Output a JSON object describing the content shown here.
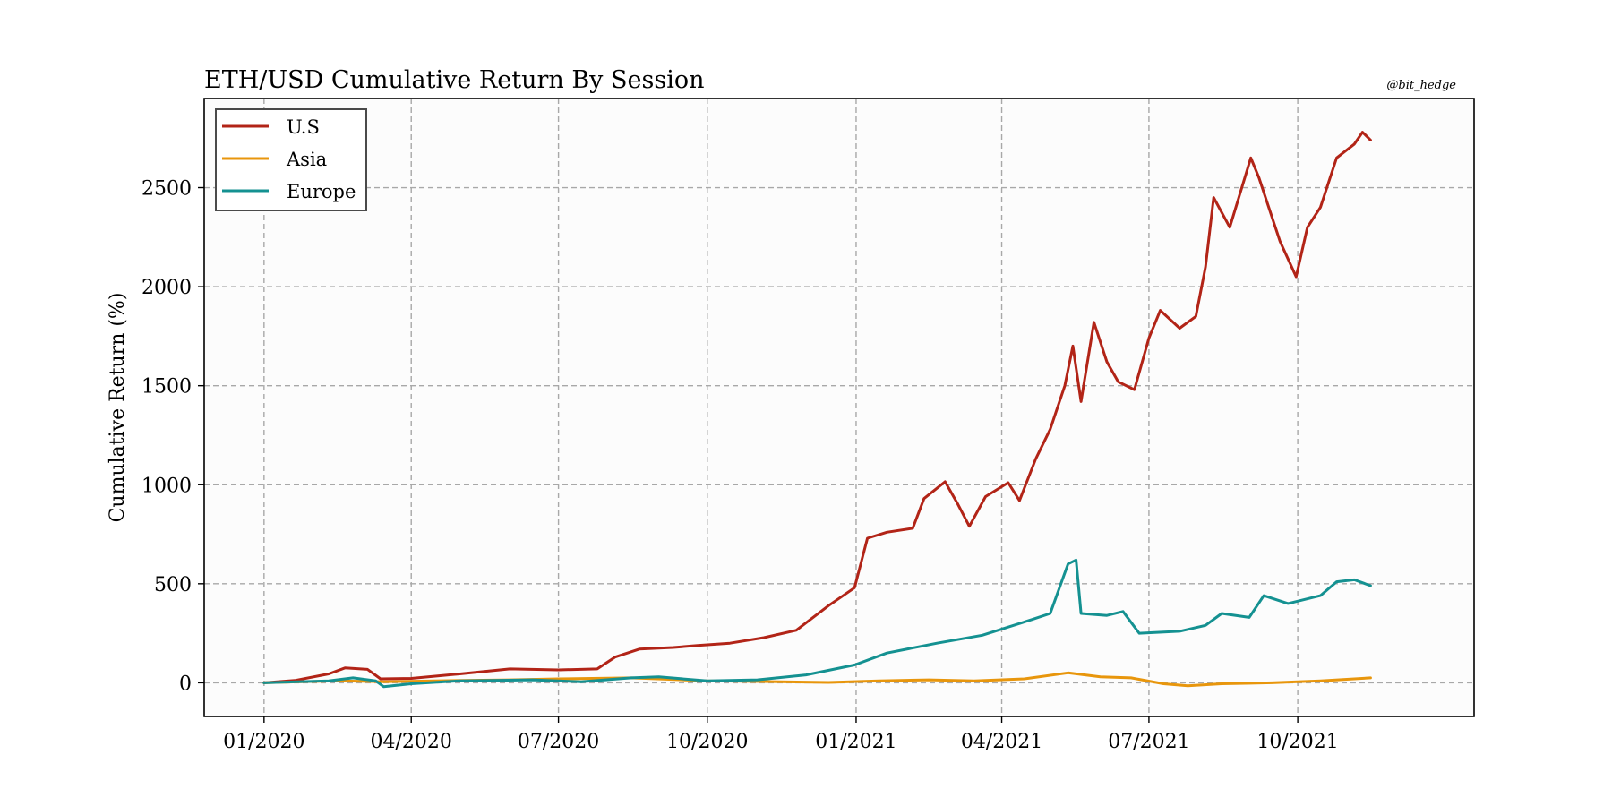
{
  "chart_data": {
    "type": "line",
    "title": "ETH/USD Cumulative Return By Session",
    "watermark": "@bit_hedge",
    "xlabel": "",
    "ylabel": "Cumulative Return (%)",
    "x_ticks": [
      "01/2020",
      "04/2020",
      "07/2020",
      "10/2020",
      "01/2021",
      "04/2021",
      "07/2021",
      "10/2021"
    ],
    "x_tick_dates": [
      "2020-01-01",
      "2020-04-01",
      "2020-07-01",
      "2020-10-01",
      "2021-01-01",
      "2021-04-01",
      "2021-07-01",
      "2021-10-01"
    ],
    "y_ticks": [
      0,
      500,
      1000,
      1500,
      2000,
      2500
    ],
    "xlim": [
      "2019-11-25",
      "2022-01-18"
    ],
    "ylim": [
      -170,
      2950
    ],
    "grid": true,
    "legend_position": "top-left",
    "colors": {
      "U.S": "#b22417",
      "Asia": "#e8960c",
      "Europe": "#149191"
    },
    "series": [
      {
        "name": "U.S",
        "color": "#b22417",
        "points": [
          [
            "2020-01-01",
            0
          ],
          [
            "2020-01-20",
            12
          ],
          [
            "2020-02-10",
            45
          ],
          [
            "2020-02-20",
            75
          ],
          [
            "2020-03-05",
            68
          ],
          [
            "2020-03-13",
            20
          ],
          [
            "2020-04-01",
            22
          ],
          [
            "2020-05-01",
            45
          ],
          [
            "2020-06-01",
            70
          ],
          [
            "2020-07-01",
            65
          ],
          [
            "2020-07-25",
            70
          ],
          [
            "2020-08-05",
            130
          ],
          [
            "2020-08-20",
            170
          ],
          [
            "2020-09-10",
            178
          ],
          [
            "2020-09-25",
            188
          ],
          [
            "2020-10-15",
            200
          ],
          [
            "2020-11-05",
            228
          ],
          [
            "2020-11-25",
            265
          ],
          [
            "2020-12-15",
            390
          ],
          [
            "2020-12-31",
            480
          ],
          [
            "2021-01-08",
            730
          ],
          [
            "2021-01-20",
            760
          ],
          [
            "2021-02-05",
            780
          ],
          [
            "2021-02-12",
            930
          ],
          [
            "2021-02-25",
            1015
          ],
          [
            "2021-03-05",
            900
          ],
          [
            "2021-03-12",
            790
          ],
          [
            "2021-03-22",
            940
          ],
          [
            "2021-04-05",
            1010
          ],
          [
            "2021-04-12",
            920
          ],
          [
            "2021-04-22",
            1130
          ],
          [
            "2021-05-01",
            1280
          ],
          [
            "2021-05-10",
            1500
          ],
          [
            "2021-05-15",
            1700
          ],
          [
            "2021-05-20",
            1420
          ],
          [
            "2021-05-28",
            1820
          ],
          [
            "2021-06-05",
            1620
          ],
          [
            "2021-06-12",
            1520
          ],
          [
            "2021-06-22",
            1480
          ],
          [
            "2021-07-01",
            1740
          ],
          [
            "2021-07-08",
            1880
          ],
          [
            "2021-07-20",
            1790
          ],
          [
            "2021-07-30",
            1850
          ],
          [
            "2021-08-05",
            2100
          ],
          [
            "2021-08-10",
            2450
          ],
          [
            "2021-08-20",
            2300
          ],
          [
            "2021-09-02",
            2650
          ],
          [
            "2021-09-07",
            2550
          ],
          [
            "2021-09-20",
            2230
          ],
          [
            "2021-09-30",
            2050
          ],
          [
            "2021-10-07",
            2300
          ],
          [
            "2021-10-15",
            2400
          ],
          [
            "2021-10-25",
            2650
          ],
          [
            "2021-11-05",
            2720
          ],
          [
            "2021-11-10",
            2780
          ],
          [
            "2021-11-15",
            2740
          ]
        ]
      },
      {
        "name": "Asia",
        "color": "#e8960c",
        "points": [
          [
            "2020-01-01",
            0
          ],
          [
            "2020-02-15",
            10
          ],
          [
            "2020-03-15",
            5
          ],
          [
            "2020-04-15",
            10
          ],
          [
            "2020-06-01",
            15
          ],
          [
            "2020-07-01",
            20
          ],
          [
            "2020-08-15",
            25
          ],
          [
            "2020-10-01",
            10
          ],
          [
            "2020-11-15",
            5
          ],
          [
            "2020-12-15",
            2
          ],
          [
            "2021-01-15",
            10
          ],
          [
            "2021-02-15",
            15
          ],
          [
            "2021-03-15",
            10
          ],
          [
            "2021-04-15",
            20
          ],
          [
            "2021-05-12",
            50
          ],
          [
            "2021-06-01",
            30
          ],
          [
            "2021-06-20",
            25
          ],
          [
            "2021-07-10",
            -5
          ],
          [
            "2021-07-25",
            -15
          ],
          [
            "2021-08-15",
            -5
          ],
          [
            "2021-09-15",
            0
          ],
          [
            "2021-10-15",
            10
          ],
          [
            "2021-11-15",
            25
          ]
        ]
      },
      {
        "name": "Europe",
        "color": "#149191",
        "points": [
          [
            "2020-01-01",
            0
          ],
          [
            "2020-02-10",
            10
          ],
          [
            "2020-02-25",
            25
          ],
          [
            "2020-03-10",
            10
          ],
          [
            "2020-03-15",
            -20
          ],
          [
            "2020-04-01",
            -5
          ],
          [
            "2020-05-01",
            10
          ],
          [
            "2020-06-15",
            15
          ],
          [
            "2020-07-15",
            5
          ],
          [
            "2020-08-15",
            25
          ],
          [
            "2020-09-01",
            30
          ],
          [
            "2020-10-01",
            10
          ],
          [
            "2020-11-01",
            15
          ],
          [
            "2020-12-01",
            40
          ],
          [
            "2020-12-31",
            90
          ],
          [
            "2021-01-20",
            150
          ],
          [
            "2021-02-20",
            200
          ],
          [
            "2021-03-20",
            240
          ],
          [
            "2021-04-20",
            320
          ],
          [
            "2021-05-01",
            350
          ],
          [
            "2021-05-12",
            600
          ],
          [
            "2021-05-17",
            620
          ],
          [
            "2021-05-20",
            350
          ],
          [
            "2021-06-05",
            340
          ],
          [
            "2021-06-15",
            360
          ],
          [
            "2021-06-25",
            250
          ],
          [
            "2021-07-20",
            260
          ],
          [
            "2021-08-05",
            290
          ],
          [
            "2021-08-15",
            350
          ],
          [
            "2021-09-01",
            330
          ],
          [
            "2021-09-10",
            440
          ],
          [
            "2021-09-25",
            400
          ],
          [
            "2021-10-15",
            440
          ],
          [
            "2021-10-25",
            510
          ],
          [
            "2021-11-05",
            520
          ],
          [
            "2021-11-15",
            490
          ]
        ]
      }
    ]
  }
}
